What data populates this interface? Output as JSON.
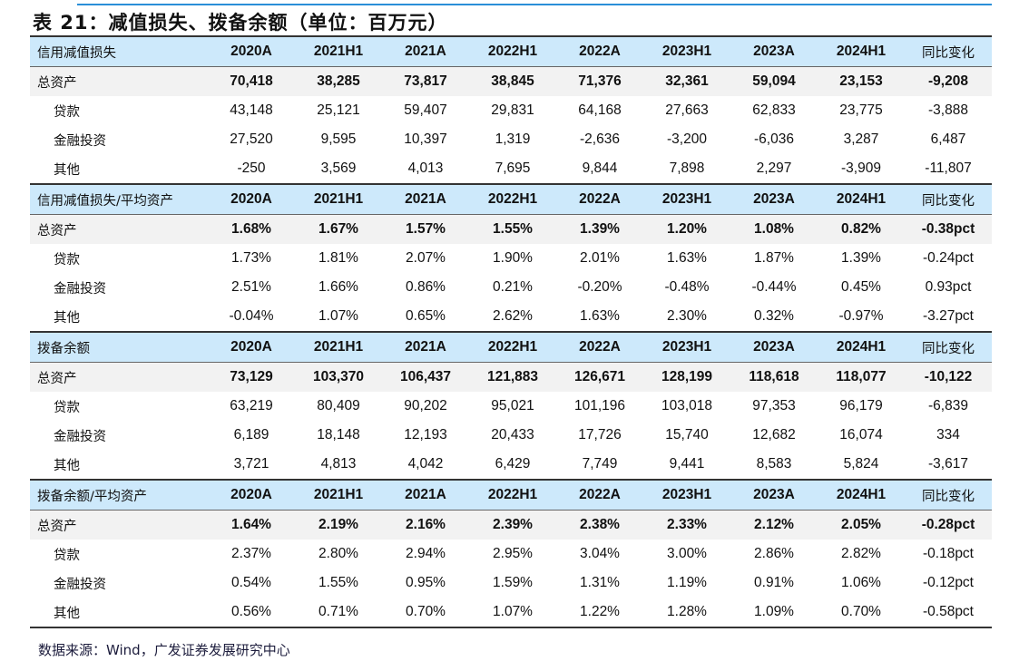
{
  "title": "表 21：减值损失、拨备余额（单位：百万元）",
  "columns": [
    "2020A",
    "2021H1",
    "2021A",
    "2022H1",
    "2022A",
    "2023H1",
    "2023A",
    "2024H1",
    "同比变化"
  ],
  "sections": [
    {
      "header": "信用减值损失",
      "rows": [
        {
          "label": "总资产",
          "bold": true,
          "values": [
            "70,418",
            "38,285",
            "73,817",
            "38,845",
            "71,376",
            "32,361",
            "59,094",
            "23,153",
            "-9,208"
          ]
        },
        {
          "label": "贷款",
          "values": [
            "43,148",
            "25,121",
            "59,407",
            "29,831",
            "64,168",
            "27,663",
            "62,833",
            "23,775",
            "-3,888"
          ]
        },
        {
          "label": "金融投资",
          "values": [
            "27,520",
            "9,595",
            "10,397",
            "1,319",
            "-2,636",
            "-3,200",
            "-6,036",
            "3,287",
            "6,487"
          ]
        },
        {
          "label": "其他",
          "values": [
            "-250",
            "3,569",
            "4,013",
            "7,695",
            "9,844",
            "7,898",
            "2,297",
            "-3,909",
            "-11,807"
          ]
        }
      ]
    },
    {
      "header": "信用减值损失/平均资产",
      "rows": [
        {
          "label": "总资产",
          "bold": true,
          "values": [
            "1.68%",
            "1.67%",
            "1.57%",
            "1.55%",
            "1.39%",
            "1.20%",
            "1.08%",
            "0.82%",
            "-0.38pct"
          ]
        },
        {
          "label": "贷款",
          "values": [
            "1.73%",
            "1.81%",
            "2.07%",
            "1.90%",
            "2.01%",
            "1.63%",
            "1.87%",
            "1.39%",
            "-0.24pct"
          ]
        },
        {
          "label": "金融投资",
          "values": [
            "2.51%",
            "1.66%",
            "0.86%",
            "0.21%",
            "-0.20%",
            "-0.48%",
            "-0.44%",
            "0.45%",
            "0.93pct"
          ]
        },
        {
          "label": "其他",
          "values": [
            "-0.04%",
            "1.07%",
            "0.65%",
            "2.62%",
            "1.63%",
            "2.30%",
            "0.32%",
            "-0.97%",
            "-3.27pct"
          ]
        }
      ]
    },
    {
      "header": "拨备余额",
      "rows": [
        {
          "label": "总资产",
          "bold": true,
          "values": [
            "73,129",
            "103,370",
            "106,437",
            "121,883",
            "126,671",
            "128,199",
            "118,618",
            "118,077",
            "-10,122"
          ]
        },
        {
          "label": "贷款",
          "values": [
            "63,219",
            "80,409",
            "90,202",
            "95,021",
            "101,196",
            "103,018",
            "97,353",
            "96,179",
            "-6,839"
          ]
        },
        {
          "label": "金融投资",
          "values": [
            "6,189",
            "18,148",
            "12,193",
            "20,433",
            "17,726",
            "15,740",
            "12,682",
            "16,074",
            "334"
          ]
        },
        {
          "label": "其他",
          "values": [
            "3,721",
            "4,813",
            "4,042",
            "6,429",
            "7,749",
            "9,441",
            "8,583",
            "5,824",
            "-3,617"
          ]
        }
      ]
    },
    {
      "header": "拨备余额/平均资产",
      "rows": [
        {
          "label": "总资产",
          "bold": true,
          "values": [
            "1.64%",
            "2.19%",
            "2.16%",
            "2.39%",
            "2.38%",
            "2.33%",
            "2.12%",
            "2.05%",
            "-0.28pct"
          ]
        },
        {
          "label": "贷款",
          "values": [
            "2.37%",
            "2.80%",
            "2.94%",
            "2.95%",
            "3.04%",
            "3.00%",
            "2.86%",
            "2.82%",
            "-0.18pct"
          ]
        },
        {
          "label": "金融投资",
          "values": [
            "0.54%",
            "1.55%",
            "0.95%",
            "1.59%",
            "1.31%",
            "1.19%",
            "0.91%",
            "1.06%",
            "-0.12pct"
          ]
        },
        {
          "label": "其他",
          "values": [
            "0.56%",
            "0.71%",
            "0.70%",
            "1.07%",
            "1.22%",
            "1.28%",
            "1.09%",
            "0.70%",
            "-0.58pct"
          ]
        }
      ]
    }
  ],
  "footer": "数据来源：Wind，广发证券发展研究中心",
  "colors": {
    "header_bg": "#cde9fb",
    "total_row_bg": "#f2f2f2",
    "top_line": "#2a8fd8"
  }
}
